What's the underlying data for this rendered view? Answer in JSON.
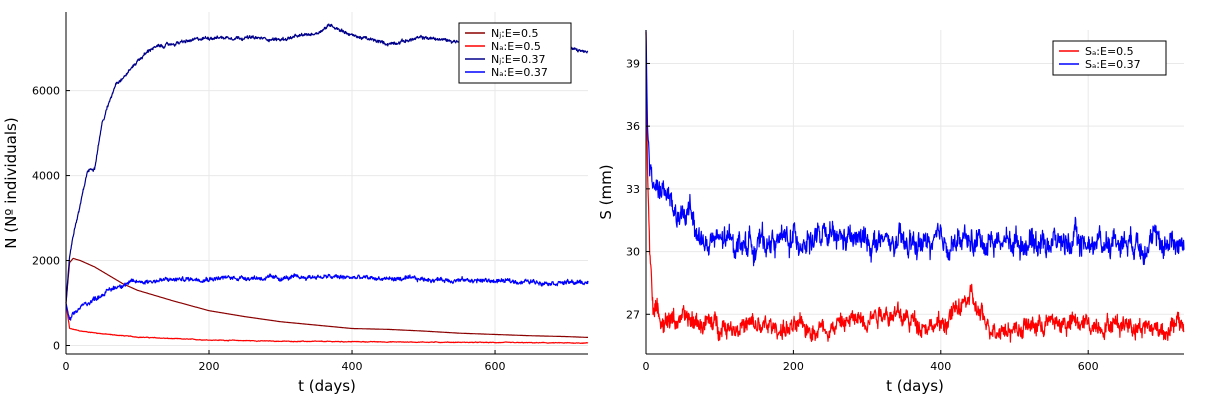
{
  "chart_data": [
    {
      "type": "line",
      "title": "",
      "xlabel": "t (days)",
      "ylabel": "N (Nº individuals)",
      "xlim": [
        0,
        730
      ],
      "ylim": [
        -200,
        7850
      ],
      "xticks": [
        0,
        200,
        400,
        600
      ],
      "yticks": [
        0,
        2000,
        4000,
        6000
      ],
      "grid": true,
      "legend_position": "top-right",
      "series": [
        {
          "name": "Nⱼ:E=0.5",
          "color": "#8b0000",
          "noise": 0,
          "x": [
            0,
            5,
            10,
            20,
            40,
            60,
            80,
            100,
            150,
            200,
            250,
            300,
            350,
            400,
            450,
            500,
            550,
            600,
            650,
            700,
            730
          ],
          "y": [
            1000,
            1950,
            2050,
            2000,
            1850,
            1650,
            1450,
            1300,
            1050,
            820,
            680,
            560,
            480,
            400,
            380,
            340,
            290,
            260,
            230,
            210,
            190
          ]
        },
        {
          "name": "Nₐ:E=0.5",
          "color": "#ff0000",
          "noise": 12,
          "x": [
            0,
            5,
            10,
            20,
            40,
            60,
            100,
            150,
            200,
            300,
            400,
            500,
            600,
            700,
            730
          ],
          "y": [
            1000,
            400,
            380,
            340,
            300,
            260,
            200,
            160,
            130,
            100,
            90,
            80,
            70,
            60,
            60
          ]
        },
        {
          "name": "Nⱼ:E=0.37",
          "color": "#00008b",
          "noise": 60,
          "x": [
            0,
            5,
            10,
            20,
            30,
            40,
            50,
            60,
            70,
            80,
            90,
            100,
            120,
            150,
            200,
            250,
            300,
            350,
            370,
            400,
            450,
            500,
            550,
            600,
            650,
            700,
            730
          ],
          "y": [
            1000,
            2100,
            2600,
            3300,
            4100,
            4200,
            5200,
            5700,
            6200,
            6300,
            6500,
            6700,
            7000,
            7100,
            7250,
            7250,
            7200,
            7350,
            7550,
            7300,
            7100,
            7250,
            7150,
            7250,
            7100,
            7000,
            6900
          ]
        },
        {
          "name": "Nₐ:E=0.37",
          "color": "#0000ff",
          "noise": 80,
          "x": [
            0,
            5,
            10,
            20,
            40,
            60,
            80,
            100,
            150,
            200,
            250,
            300,
            350,
            400,
            450,
            500,
            550,
            600,
            650,
            700,
            730
          ],
          "y": [
            1000,
            600,
            700,
            900,
            1100,
            1300,
            1450,
            1500,
            1550,
            1580,
            1600,
            1580,
            1620,
            1600,
            1570,
            1560,
            1540,
            1520,
            1500,
            1480,
            1480
          ]
        }
      ]
    },
    {
      "type": "line",
      "title": "",
      "xlabel": "t (days)",
      "ylabel": "S (mm)",
      "xlim": [
        0,
        730
      ],
      "ylim": [
        25.1,
        40.6
      ],
      "xticks": [
        0,
        200,
        400,
        600
      ],
      "yticks": [
        27,
        30,
        33,
        36,
        39
      ],
      "grid": true,
      "legend_position": "top-right",
      "series": [
        {
          "name": "Sₐ:E=0.5",
          "color": "#ff0000",
          "noise": 0.7,
          "x": [
            0,
            2,
            5,
            10,
            15,
            25,
            50,
            100,
            150,
            200,
            250,
            300,
            320,
            350,
            400,
            430,
            440,
            460,
            500,
            550,
            600,
            650,
            700,
            730
          ],
          "y": [
            40.5,
            34,
            30,
            27.5,
            27,
            26.8,
            26.7,
            26.5,
            26.4,
            26.3,
            26.4,
            26.9,
            27.2,
            26.8,
            26.4,
            27.5,
            27.8,
            26.5,
            26.3,
            26.6,
            26.5,
            26.6,
            26.3,
            26.5
          ]
        },
        {
          "name": "Sₐ:E=0.37",
          "color": "#0000ff",
          "noise": 0.9,
          "x": [
            0,
            2,
            5,
            10,
            20,
            30,
            40,
            50,
            60,
            70,
            80,
            100,
            150,
            200,
            250,
            300,
            350,
            400,
            450,
            500,
            550,
            600,
            650,
            700,
            730
          ],
          "y": [
            40.6,
            36,
            34,
            33.2,
            33,
            32.6,
            31.8,
            31.3,
            32.2,
            30.9,
            30.3,
            30.5,
            30.4,
            30.6,
            30.6,
            30.5,
            30.3,
            30.4,
            30.5,
            30.5,
            30.5,
            30.4,
            30.6,
            30.4,
            30.5
          ]
        }
      ]
    }
  ]
}
